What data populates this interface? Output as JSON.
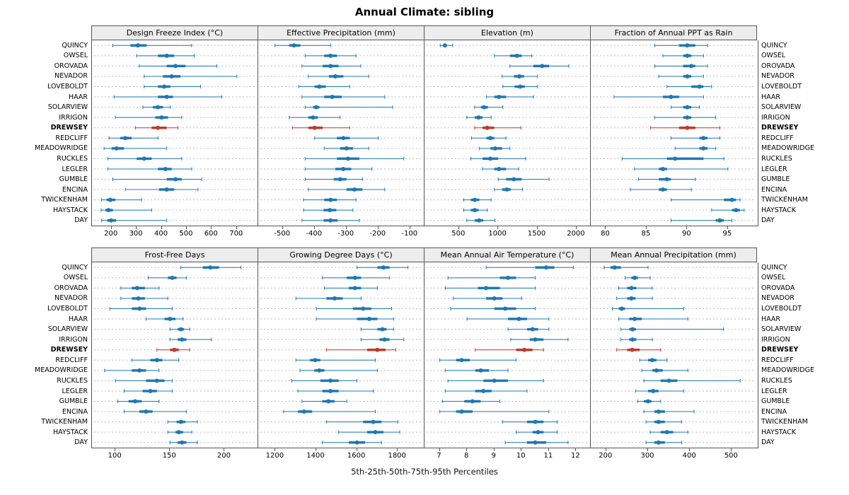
{
  "title": "Annual Climate: sibling",
  "caption": "5th-25th-50th-75th-95th Percentiles",
  "colors": {
    "series": "#1f78b4",
    "highlight": "#c0392b",
    "grid": "#bdbdbd",
    "panel_border": "#555555",
    "panel_header_bg": "#ededed"
  },
  "chart_data": {
    "type": "dotplot-intervals",
    "percentiles": [
      5,
      25,
      50,
      75,
      95
    ],
    "highlight_station": "DREWSEY",
    "stations": [
      "QUINCY",
      "OWSEL",
      "OROVADA",
      "NEVADOR",
      "LOVEBOLDT",
      "HAAR",
      "SOLARVIEW",
      "IRRIGON",
      "DREWSEY",
      "REDCLIFF",
      "MEADOWRIDGE",
      "RUCKLES",
      "LEGLER",
      "GUMBLE",
      "ENCINA",
      "TWICKENHAM",
      "HAYSTACK",
      "DAY"
    ],
    "panels": [
      {
        "title": "Design Freeze Index (°C)",
        "xlim": [
          150,
          760
        ],
        "ticks": [
          200,
          300,
          400,
          500,
          600,
          700
        ],
        "rows": [
          [
            205,
            275,
            305,
            340,
            520
          ],
          [
            300,
            385,
            420,
            450,
            530
          ],
          [
            310,
            420,
            455,
            495,
            620
          ],
          [
            330,
            405,
            440,
            475,
            700
          ],
          [
            330,
            385,
            410,
            435,
            555
          ],
          [
            210,
            385,
            420,
            445,
            640
          ],
          [
            325,
            365,
            385,
            405,
            435
          ],
          [
            215,
            375,
            400,
            425,
            480
          ],
          [
            295,
            360,
            385,
            420,
            465
          ],
          [
            190,
            235,
            255,
            280,
            385
          ],
          [
            170,
            200,
            220,
            250,
            420
          ],
          [
            185,
            300,
            330,
            360,
            480
          ],
          [
            185,
            385,
            415,
            440,
            520
          ],
          [
            205,
            420,
            455,
            480,
            560
          ],
          [
            255,
            390,
            420,
            450,
            545
          ],
          [
            160,
            180,
            195,
            215,
            320
          ],
          [
            158,
            175,
            188,
            205,
            360
          ],
          [
            160,
            182,
            198,
            218,
            420
          ]
        ]
      },
      {
        "title": "Effective Precipitation (mm)",
        "xlim": [
          -555,
          -75
        ],
        "ticks": [
          -500,
          -400,
          -300,
          -200,
          -100
        ],
        "rows": [
          [
            -525,
            -480,
            -465,
            -445,
            -350
          ],
          [
            -430,
            -370,
            -350,
            -330,
            -270
          ],
          [
            -440,
            -375,
            -350,
            -325,
            -255
          ],
          [
            -420,
            -355,
            -335,
            -310,
            -230
          ],
          [
            -450,
            -400,
            -385,
            -365,
            -290
          ],
          [
            -440,
            -370,
            -345,
            -315,
            -180
          ],
          [
            -430,
            -405,
            -395,
            -385,
            -155
          ],
          [
            -480,
            -420,
            -405,
            -390,
            -320
          ],
          [
            -470,
            -420,
            -400,
            -375,
            -290
          ],
          [
            -400,
            -330,
            -310,
            -290,
            -200
          ],
          [
            -370,
            -320,
            -300,
            -280,
            -230
          ],
          [
            -430,
            -330,
            -295,
            -260,
            -120
          ],
          [
            -430,
            -335,
            -310,
            -285,
            -220
          ],
          [
            -430,
            -340,
            -320,
            -300,
            -250
          ],
          [
            -420,
            -300,
            -275,
            -250,
            -180
          ],
          [
            -435,
            -370,
            -350,
            -330,
            -270
          ],
          [
            -435,
            -372,
            -352,
            -332,
            -280
          ],
          [
            -440,
            -372,
            -350,
            -328,
            -260
          ]
        ]
      },
      {
        "title": "Elevation (m)",
        "xlim": [
          150,
          2100
        ],
        "ticks": [
          500,
          1000,
          1500,
          2000
        ],
        "rows": [
          [
            260,
            300,
            320,
            345,
            420
          ],
          [
            950,
            1150,
            1240,
            1300,
            1430
          ],
          [
            1150,
            1450,
            1560,
            1650,
            1900
          ],
          [
            1050,
            1200,
            1270,
            1330,
            1500
          ],
          [
            1060,
            1210,
            1280,
            1340,
            1500
          ],
          [
            850,
            950,
            1010,
            1100,
            1450
          ],
          [
            700,
            780,
            820,
            870,
            1060
          ],
          [
            600,
            700,
            750,
            800,
            910
          ],
          [
            700,
            800,
            860,
            950,
            1290
          ],
          [
            660,
            850,
            900,
            950,
            1100
          ],
          [
            760,
            900,
            960,
            1050,
            1150
          ],
          [
            650,
            800,
            900,
            1000,
            1350
          ],
          [
            800,
            950,
            1010,
            1100,
            1260
          ],
          [
            1000,
            1100,
            1200,
            1300,
            1650
          ],
          [
            950,
            1050,
            1110,
            1160,
            1310
          ],
          [
            560,
            650,
            700,
            760,
            910
          ],
          [
            560,
            650,
            700,
            750,
            860
          ],
          [
            600,
            700,
            755,
            810,
            960
          ]
        ]
      },
      {
        "title": "Fraction of Annual PPT as Rain",
        "xlim": [
          79,
          97.8
        ],
        "ticks": [
          80,
          85,
          90,
          95
        ],
        "rows": [
          [
            86,
            89,
            90,
            91,
            92.5
          ],
          [
            87,
            89.5,
            90,
            90.5,
            92
          ],
          [
            86,
            89.5,
            90.5,
            91,
            92.5
          ],
          [
            86.5,
            89.5,
            90,
            90.5,
            92
          ],
          [
            87.5,
            90.5,
            91.5,
            92,
            93
          ],
          [
            81,
            87,
            88,
            89,
            92
          ],
          [
            88,
            89.5,
            90,
            90.5,
            91.5
          ],
          [
            86,
            89.5,
            90,
            90.5,
            93.5
          ],
          [
            85.5,
            89,
            90,
            91,
            94
          ],
          [
            88,
            91.5,
            92,
            92.5,
            94
          ],
          [
            88.5,
            91.5,
            92,
            92.5,
            93.5
          ],
          [
            82,
            87.5,
            88.5,
            92,
            94.5
          ],
          [
            83.5,
            86.5,
            87,
            87.5,
            95
          ],
          [
            84,
            86.5,
            87.5,
            88,
            91
          ],
          [
            83,
            86.5,
            87,
            87.5,
            90.5
          ],
          [
            88,
            94.5,
            95.5,
            96,
            96.5
          ],
          [
            93,
            95.5,
            96,
            96.5,
            97
          ],
          [
            88,
            93.5,
            94,
            94.5,
            95.5
          ]
        ]
      },
      {
        "title": "Frost-Free Days",
        "xlim": [
          85,
          225
        ],
        "ticks": [
          100,
          150,
          200
        ],
        "rows": [
          [
            160,
            180,
            187,
            195,
            215
          ],
          [
            130,
            148,
            152,
            156,
            165
          ],
          [
            105,
            115,
            120,
            127,
            140
          ],
          [
            105,
            115,
            121,
            127,
            148
          ],
          [
            95,
            115,
            122,
            128,
            152
          ],
          [
            128,
            145,
            150,
            155,
            162
          ],
          [
            150,
            157,
            160,
            163,
            168
          ],
          [
            150,
            157,
            161,
            165,
            188
          ],
          [
            138,
            150,
            154,
            158,
            168
          ],
          [
            115,
            132,
            138,
            143,
            158
          ],
          [
            90,
            115,
            122,
            128,
            140
          ],
          [
            100,
            128,
            138,
            145,
            152
          ],
          [
            108,
            125,
            132,
            138,
            152
          ],
          [
            102,
            112,
            118,
            124,
            140
          ],
          [
            108,
            122,
            128,
            134,
            165
          ],
          [
            148,
            156,
            160,
            164,
            175
          ],
          [
            148,
            155,
            158,
            162,
            170
          ],
          [
            150,
            157,
            161,
            165,
            175
          ]
        ]
      },
      {
        "title": "Growing Degree Days (°C)",
        "xlim": [
          1150,
          1900
        ],
        "ticks": [
          1200,
          1400,
          1600,
          1800
        ],
        "rows": [
          [
            1600,
            1700,
            1730,
            1760,
            1850
          ],
          [
            1430,
            1550,
            1590,
            1620,
            1760
          ],
          [
            1440,
            1560,
            1590,
            1620,
            1700
          ],
          [
            1300,
            1450,
            1490,
            1530,
            1620
          ],
          [
            1400,
            1580,
            1630,
            1670,
            1770
          ],
          [
            1400,
            1600,
            1660,
            1700,
            1780
          ],
          [
            1620,
            1700,
            1725,
            1745,
            1780
          ],
          [
            1620,
            1710,
            1735,
            1760,
            1830
          ],
          [
            1450,
            1650,
            1700,
            1740,
            1790
          ],
          [
            1300,
            1370,
            1395,
            1420,
            1690
          ],
          [
            1320,
            1390,
            1415,
            1440,
            1700
          ],
          [
            1280,
            1420,
            1470,
            1510,
            1600
          ],
          [
            1310,
            1430,
            1470,
            1510,
            1680
          ],
          [
            1330,
            1430,
            1460,
            1490,
            1550
          ],
          [
            1240,
            1310,
            1340,
            1380,
            1690
          ],
          [
            1450,
            1630,
            1680,
            1720,
            1800
          ],
          [
            1510,
            1650,
            1690,
            1730,
            1810
          ],
          [
            1430,
            1560,
            1600,
            1640,
            1720
          ]
        ]
      },
      {
        "title": "Mean Annual Air Temperature (°C)",
        "xlim": [
          6.7,
          12.3
        ],
        "ticks": [
          7,
          8,
          9,
          10,
          11,
          12
        ],
        "rows": [
          [
            8.7,
            10.5,
            10.9,
            11.2,
            11.9
          ],
          [
            7.3,
            9.2,
            9.5,
            9.8,
            10.5
          ],
          [
            7.2,
            8.4,
            8.7,
            9.2,
            10.5
          ],
          [
            7.5,
            8.7,
            9.0,
            9.3,
            10.0
          ],
          [
            7.4,
            9.0,
            9.4,
            9.8,
            10.5
          ],
          [
            8.0,
            9.5,
            9.9,
            10.2,
            11.0
          ],
          [
            9.5,
            10.2,
            10.4,
            10.6,
            11.0
          ],
          [
            9.6,
            10.3,
            10.5,
            10.8,
            11.7
          ],
          [
            8.3,
            9.8,
            10.1,
            10.4,
            10.8
          ],
          [
            7.0,
            7.6,
            7.8,
            8.1,
            9.8
          ],
          [
            7.2,
            8.3,
            8.5,
            8.8,
            9.5
          ],
          [
            7.3,
            8.6,
            9.0,
            9.5,
            10.8
          ],
          [
            7.2,
            8.3,
            8.6,
            8.9,
            10.2
          ],
          [
            7.1,
            7.9,
            8.2,
            8.5,
            9.2
          ],
          [
            7.0,
            7.6,
            7.8,
            8.2,
            11.0
          ],
          [
            9.3,
            10.2,
            10.5,
            10.8,
            11.3
          ],
          [
            9.8,
            10.4,
            10.6,
            10.8,
            11.3
          ],
          [
            9.4,
            10.2,
            10.5,
            10.9,
            11.7
          ]
        ]
      },
      {
        "title": "Mean Annual Precipitation (mm)",
        "xlim": [
          180,
          545
        ],
        "ticks": [
          200,
          300,
          400,
          500
        ],
        "rows": [
          [
            195,
            210,
            220,
            235,
            300
          ],
          [
            245,
            260,
            268,
            276,
            305
          ],
          [
            230,
            250,
            260,
            272,
            310
          ],
          [
            225,
            250,
            260,
            270,
            310
          ],
          [
            215,
            230,
            237,
            245,
            385
          ],
          [
            230,
            255,
            268,
            285,
            395
          ],
          [
            235,
            255,
            263,
            271,
            480
          ],
          [
            235,
            255,
            263,
            272,
            310
          ],
          [
            225,
            250,
            262,
            280,
            330
          ],
          [
            280,
            300,
            310,
            320,
            345
          ],
          [
            285,
            310,
            320,
            335,
            395
          ],
          [
            290,
            330,
            350,
            370,
            520
          ],
          [
            270,
            300,
            312,
            325,
            385
          ],
          [
            275,
            290,
            300,
            308,
            330
          ],
          [
            290,
            315,
            325,
            340,
            410
          ],
          [
            295,
            315,
            325,
            340,
            380
          ],
          [
            305,
            330,
            345,
            360,
            395
          ],
          [
            295,
            315,
            325,
            340,
            380
          ]
        ]
      }
    ]
  }
}
